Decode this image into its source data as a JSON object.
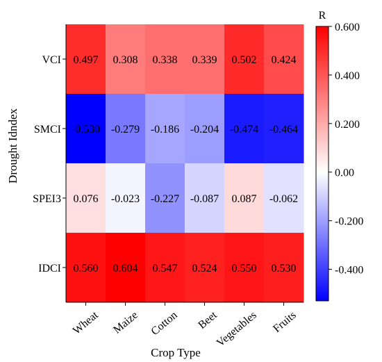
{
  "chart_data": {
    "type": "heatmap",
    "xlabel": "Crop Type",
    "ylabel": "Drought Idndex",
    "x_categories": [
      "Wheat",
      "Maize",
      "Cotton",
      "Beet",
      "Vegetables",
      "Fruits"
    ],
    "y_categories": [
      "VCI",
      "SMCI",
      "SPEI3",
      "IDCI"
    ],
    "values": [
      [
        0.497,
        0.308,
        0.338,
        0.339,
        0.502,
        0.424
      ],
      [
        -0.53,
        -0.279,
        -0.186,
        -0.204,
        -0.474,
        -0.464
      ],
      [
        0.076,
        -0.023,
        -0.227,
        -0.087,
        0.087,
        -0.062
      ],
      [
        0.56,
        0.604,
        0.547,
        0.524,
        0.55,
        0.53
      ]
    ],
    "value_labels": [
      [
        "0.497",
        "0.308",
        "0.338",
        "0.339",
        "0.502",
        "0.424"
      ],
      [
        "-0.530",
        "-0.279",
        "-0.186",
        "-0.204",
        "-0.474",
        "-0.464"
      ],
      [
        "0.076",
        "-0.023",
        "-0.227",
        "-0.087",
        "0.087",
        "-0.062"
      ],
      [
        "0.560",
        "0.604",
        "0.547",
        "0.524",
        "0.550",
        "0.530"
      ]
    ],
    "colorbar": {
      "title": "R",
      "range": [
        -0.53,
        0.6
      ],
      "ticks": [
        0.6,
        0.4,
        0.2,
        0.0,
        -0.2,
        -0.4
      ],
      "tick_labels": [
        "0.600",
        "0.400",
        "0.200",
        "0.00",
        "-0.200",
        "-0.400"
      ],
      "colors": {
        "low": "#0000ff",
        "mid": "#ffffff",
        "high": "#ff0000"
      }
    }
  }
}
